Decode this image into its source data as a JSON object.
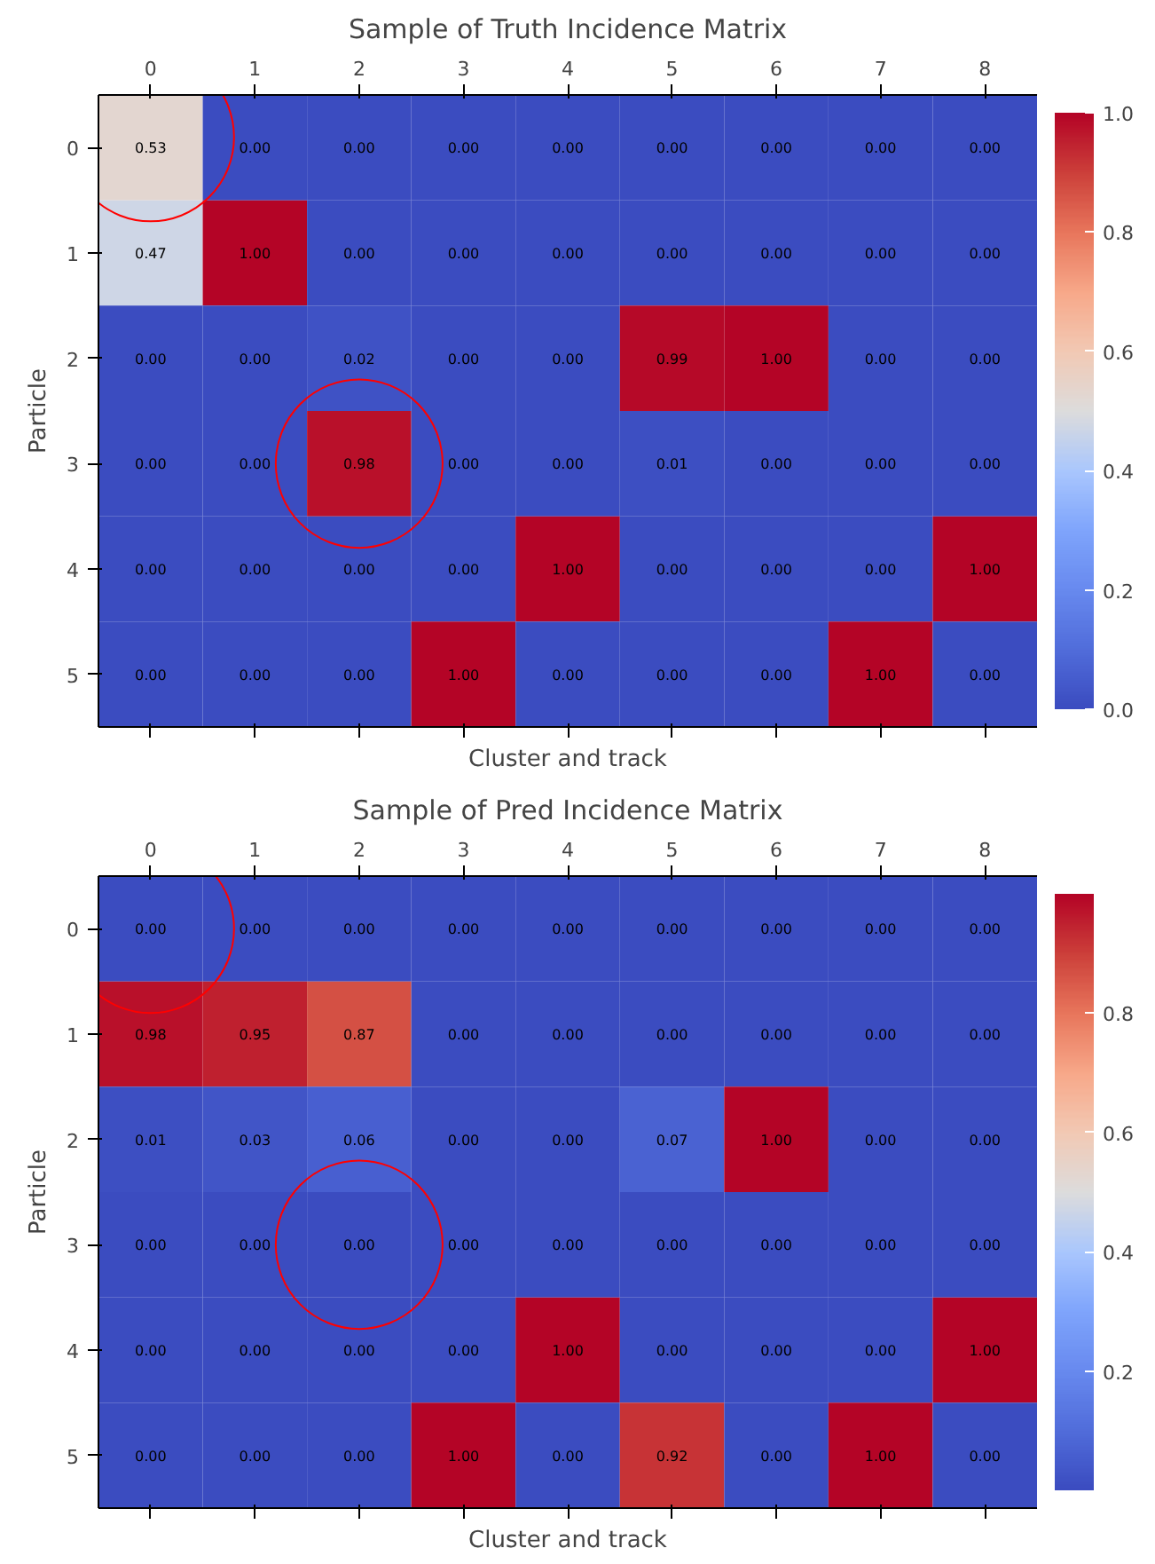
{
  "chart_data": [
    {
      "type": "heatmap",
      "title": "Sample of Truth Incidence Matrix",
      "xlabel": "Cluster and track",
      "ylabel": "Particle",
      "categories": [
        "0",
        "1",
        "2",
        "3",
        "4",
        "5",
        "6",
        "7",
        "8"
      ],
      "y_categories": [
        "0",
        "1",
        "2",
        "3",
        "4",
        "5"
      ],
      "cells": [
        [
          0.53,
          0.0,
          0.0,
          0.0,
          0.0,
          0.0,
          0.0,
          0.0,
          0.0
        ],
        [
          0.47,
          1.0,
          0.0,
          0.0,
          0.0,
          0.0,
          0.0,
          0.0,
          0.0
        ],
        [
          0.0,
          0.0,
          0.02,
          0.0,
          0.0,
          0.99,
          1.0,
          0.0,
          0.0
        ],
        [
          0.0,
          0.0,
          0.98,
          0.0,
          0.0,
          0.01,
          0.0,
          0.0,
          0.0
        ],
        [
          0.0,
          0.0,
          0.0,
          0.0,
          1.0,
          0.0,
          0.0,
          0.0,
          1.0
        ],
        [
          0.0,
          0.0,
          0.0,
          1.0,
          0.0,
          0.0,
          0.0,
          1.0,
          0.0
        ]
      ],
      "cell_labels": [
        [
          "0.53",
          "0.00",
          "0.00",
          "0.00",
          "0.00",
          "0.00",
          "0.00",
          "0.00",
          "0.00"
        ],
        [
          "0.47",
          "1.00",
          "0.00",
          "0.00",
          "0.00",
          "0.00",
          "0.00",
          "0.00",
          "0.00"
        ],
        [
          "0.00",
          "0.00",
          "0.02",
          "0.00",
          "0.00",
          "0.99",
          "1.00",
          "0.00",
          "0.00"
        ],
        [
          "0.00",
          "0.00",
          "0.98",
          "0.00",
          "0.00",
          "0.01",
          "0.00",
          "0.00",
          "0.00"
        ],
        [
          "0.00",
          "0.00",
          "0.00",
          "0.00",
          "1.00",
          "0.00",
          "0.00",
          "0.00",
          "1.00"
        ],
        [
          "0.00",
          "0.00",
          "0.00",
          "1.00",
          "0.00",
          "0.00",
          "0.00",
          "1.00",
          "0.00"
        ]
      ],
      "clim": [
        0.0,
        1.0
      ],
      "cticks": [
        {
          "value": 0,
          "label": "0.0"
        },
        0.2,
        0.4,
        0.6,
        0.8,
        {
          "value": 1,
          "label": "1.0"
        }
      ]
    },
    {
      "type": "heatmap",
      "title": "Sample of Pred Incidence Matrix",
      "xlabel": "Cluster and track",
      "ylabel": "Particle",
      "categories": [
        "0",
        "1",
        "2",
        "3",
        "4",
        "5",
        "6",
        "7",
        "8"
      ],
      "y_categories": [
        "0",
        "1",
        "2",
        "3",
        "4",
        "5"
      ],
      "cells": [
        [
          0.0,
          0.0,
          0.0,
          0.0,
          0.0,
          0.0,
          0.0,
          0.0,
          0.0
        ],
        [
          0.98,
          0.95,
          0.87,
          0.0,
          0.0,
          0.0,
          0.0,
          0.0,
          0.0
        ],
        [
          0.01,
          0.03,
          0.06,
          0.0,
          0.0,
          0.07,
          1.0,
          0.0,
          0.0
        ],
        [
          0.0,
          0.0,
          0.0,
          0.0,
          0.0,
          0.0,
          0.0,
          0.0,
          0.0
        ],
        [
          0.0,
          0.0,
          0.0,
          0.0,
          1.0,
          0.0,
          0.0,
          0.0,
          1.0
        ],
        [
          0.0,
          0.0,
          0.0,
          1.0,
          0.0,
          0.92,
          0.0,
          1.0,
          0.0
        ]
      ],
      "cell_labels": [
        [
          "0.00",
          "0.00",
          "0.00",
          "0.00",
          "0.00",
          "0.00",
          "0.00",
          "0.00",
          "0.00"
        ],
        [
          "0.98",
          "0.95",
          "0.87",
          "0.00",
          "0.00",
          "0.00",
          "0.00",
          "0.00",
          "0.00"
        ],
        [
          "0.01",
          "0.03",
          "0.06",
          "0.00",
          "0.00",
          "0.07",
          "1.00",
          "0.00",
          "0.00"
        ],
        [
          "0.00",
          "0.00",
          "0.00",
          "0.00",
          "0.00",
          "0.00",
          "0.00",
          "0.00",
          "0.00"
        ],
        [
          "0.00",
          "0.00",
          "0.00",
          "0.00",
          "1.00",
          "0.00",
          "0.00",
          "0.00",
          "1.00"
        ],
        [
          "0.00",
          "0.00",
          "0.00",
          "1.00",
          "0.00",
          "0.92",
          "0.00",
          "1.00",
          "0.00"
        ]
      ],
      "clim": [
        0.0,
        1.0
      ],
      "cticks": [
        0.2,
        0.4,
        0.6,
        0.8
      ]
    }
  ]
}
